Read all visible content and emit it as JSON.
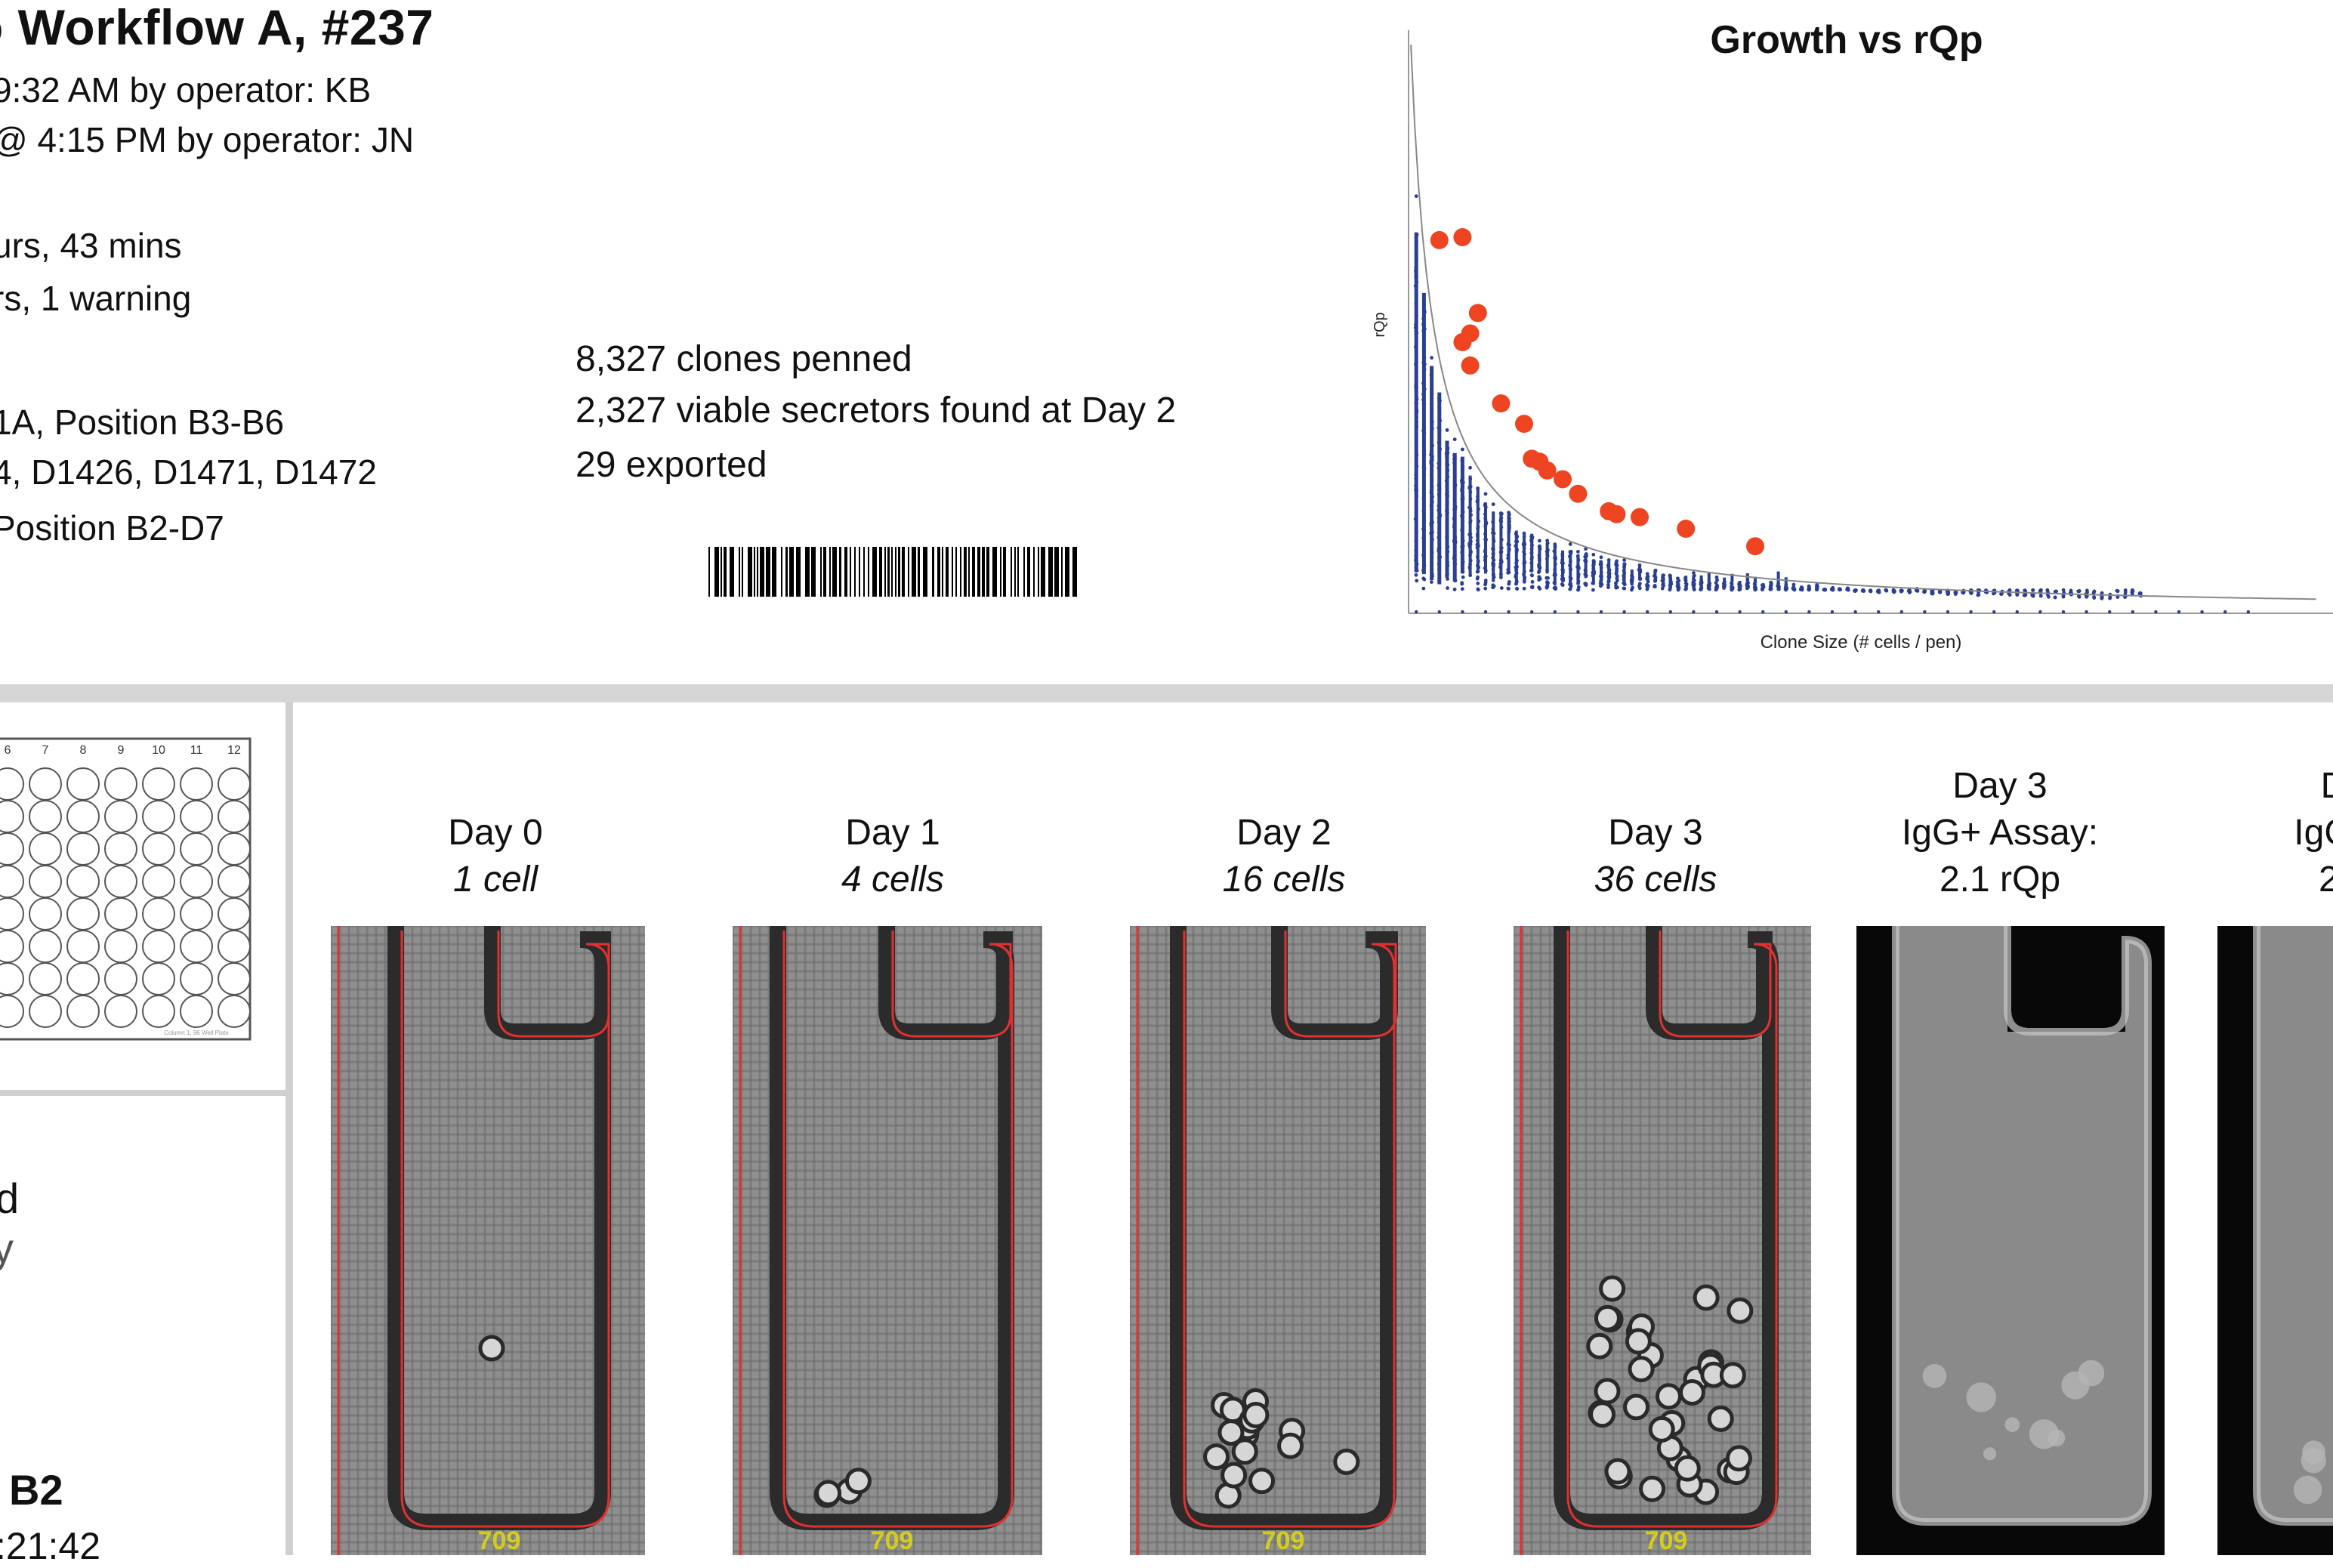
{
  "report": {
    "title": "o Workflow A,  #237",
    "lines": [
      "9:32 AM by operator: KB",
      "@ 4:15 PM by operator: JN",
      "urs, 43 mins",
      "rs, 1 warning",
      "1A, Position B3-B6",
      "4, D1426, D1471, D1472",
      " Position B2-D7"
    ],
    "left_lower": [
      "d",
      "y",
      "B2",
      ":21:42"
    ]
  },
  "stats": {
    "penned": "8,327 clones penned",
    "viable": "2,327 viable secretors found at Day 2",
    "exported": "29 exported"
  },
  "plate": {
    "col_labels": [
      "6",
      "7",
      "8",
      "9",
      "10",
      "11",
      "12"
    ],
    "footer": "Column 1, 96 Well Plate"
  },
  "chart_data": {
    "type": "scatter",
    "title": "Growth vs rQp",
    "xlabel": "Clone Size (# cells / pen)",
    "ylabel": "rQp",
    "xlim": [
      0,
      120
    ],
    "ylim": [
      0,
      20
    ],
    "fit_curve": "rQp = 19.5 / (x/3 + 0.9)",
    "background_series": "dense blue columns of points at each integer clone size, decreasing rQp with size",
    "highlighted_points": [
      {
        "x": 4,
        "y": 12.8
      },
      {
        "x": 7,
        "y": 12.9
      },
      {
        "x": 7,
        "y": 9.3
      },
      {
        "x": 8,
        "y": 9.6
      },
      {
        "x": 9,
        "y": 10.3
      },
      {
        "x": 8,
        "y": 8.5
      },
      {
        "x": 12,
        "y": 7.2
      },
      {
        "x": 15,
        "y": 6.5
      },
      {
        "x": 16,
        "y": 5.3
      },
      {
        "x": 17,
        "y": 5.2
      },
      {
        "x": 18,
        "y": 4.9
      },
      {
        "x": 20,
        "y": 4.6
      },
      {
        "x": 22,
        "y": 4.1
      },
      {
        "x": 26,
        "y": 3.5
      },
      {
        "x": 27,
        "y": 3.4
      },
      {
        "x": 30,
        "y": 3.3
      },
      {
        "x": 36,
        "y": 2.9
      },
      {
        "x": 45,
        "y": 2.3
      }
    ]
  },
  "panels": [
    {
      "label1": "Day 0",
      "label2": "1 cell",
      "kind": "bright",
      "cells": 1,
      "pen_number": "709"
    },
    {
      "label1": "Day 1",
      "label2": "4 cells",
      "kind": "bright",
      "cells": 4,
      "pen_number": "709"
    },
    {
      "label1": "Day 2",
      "label2": "16 cells",
      "kind": "bright",
      "cells": 16,
      "pen_number": "709"
    },
    {
      "label1": "Day 3",
      "label2": "36 cells",
      "kind": "bright",
      "cells": 36,
      "pen_number": "709"
    },
    {
      "label0": "Day 3",
      "label1": "IgG+ Assay:",
      "label2": "2.1 rQp",
      "kind": "fluor"
    },
    {
      "label0": "D",
      "label1": "IgG+",
      "label2": "2.",
      "kind": "fluor"
    }
  ],
  "colors": {
    "scatter_blue": "#2b3f93",
    "highlight_red": "#ee4422",
    "pen_outline_red": "#e03030",
    "pen_number_yellow": "#e8e000"
  }
}
